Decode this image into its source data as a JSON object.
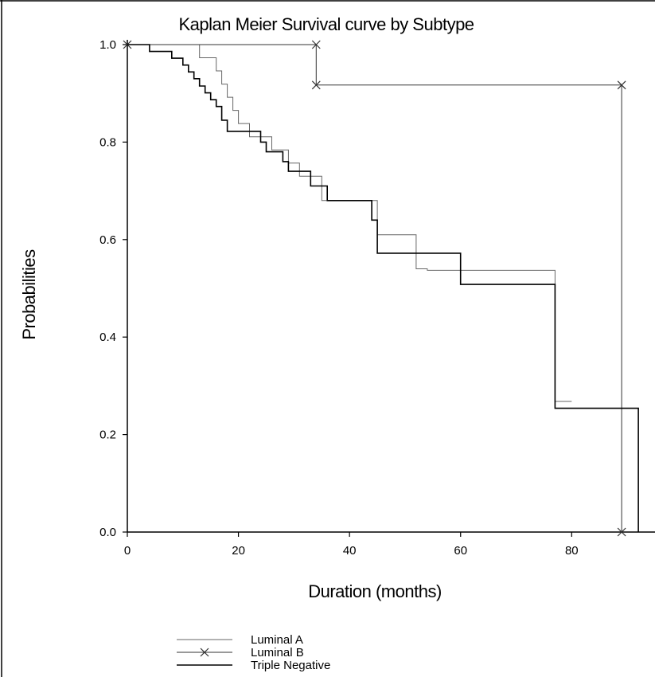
{
  "chart_data": {
    "type": "line",
    "step": true,
    "title": "Kaplan Meier Survival curve by Subtype",
    "xlabel": "Duration (months)",
    "ylabel": "Probabilities",
    "xlim": [
      0,
      95
    ],
    "ylim": [
      0,
      1.0
    ],
    "x_ticks": [
      0,
      20,
      40,
      60,
      80
    ],
    "x_tick_labels": [
      "0",
      "20",
      "40",
      "60",
      "80"
    ],
    "y_ticks": [
      0.0,
      0.2,
      0.4,
      0.6,
      0.8,
      1.0
    ],
    "y_tick_labels": [
      "0.0",
      "0.2",
      "0.4",
      "0.6",
      "0.8",
      "1.0"
    ],
    "grid": false,
    "legend_position": "bottom-left",
    "series": [
      {
        "name": "Luminal A",
        "marker": "none",
        "color": "#666666",
        "points": [
          [
            0,
            1.0
          ],
          [
            13,
            1.0
          ],
          [
            13,
            0.973
          ],
          [
            16,
            0.973
          ],
          [
            16,
            0.946
          ],
          [
            17,
            0.946
          ],
          [
            17,
            0.919
          ],
          [
            18,
            0.919
          ],
          [
            18,
            0.892
          ],
          [
            19,
            0.892
          ],
          [
            19,
            0.865
          ],
          [
            20,
            0.865
          ],
          [
            20,
            0.838
          ],
          [
            22,
            0.838
          ],
          [
            22,
            0.811
          ],
          [
            26,
            0.811
          ],
          [
            26,
            0.784
          ],
          [
            29,
            0.784
          ],
          [
            29,
            0.757
          ],
          [
            31,
            0.757
          ],
          [
            31,
            0.73
          ],
          [
            35,
            0.73
          ],
          [
            35,
            0.68
          ],
          [
            45,
            0.68
          ],
          [
            45,
            0.61
          ],
          [
            52,
            0.61
          ],
          [
            52,
            0.54
          ],
          [
            54,
            0.54
          ],
          [
            54,
            0.537
          ],
          [
            77,
            0.537
          ],
          [
            77,
            0.268
          ],
          [
            80,
            0.268
          ]
        ]
      },
      {
        "name": "Luminal B",
        "marker": "x",
        "color": "#333333",
        "points": [
          [
            0,
            1.0
          ],
          [
            34,
            1.0
          ],
          [
            34,
            0.917
          ],
          [
            89,
            0.917
          ],
          [
            89,
            0.0
          ]
        ]
      },
      {
        "name": "Triple Negative",
        "marker": "none",
        "color": "#000000",
        "points": [
          [
            0,
            1.0
          ],
          [
            4,
            1.0
          ],
          [
            4,
            0.986
          ],
          [
            8,
            0.986
          ],
          [
            8,
            0.972
          ],
          [
            10,
            0.972
          ],
          [
            10,
            0.958
          ],
          [
            11,
            0.958
          ],
          [
            11,
            0.944
          ],
          [
            12,
            0.944
          ],
          [
            12,
            0.93
          ],
          [
            13,
            0.93
          ],
          [
            13,
            0.915
          ],
          [
            14,
            0.915
          ],
          [
            14,
            0.901
          ],
          [
            15,
            0.901
          ],
          [
            15,
            0.887
          ],
          [
            16,
            0.887
          ],
          [
            16,
            0.873
          ],
          [
            17,
            0.873
          ],
          [
            17,
            0.845
          ],
          [
            18,
            0.845
          ],
          [
            18,
            0.822
          ],
          [
            24,
            0.822
          ],
          [
            24,
            0.8
          ],
          [
            25,
            0.8
          ],
          [
            25,
            0.78
          ],
          [
            28,
            0.78
          ],
          [
            28,
            0.76
          ],
          [
            29,
            0.76
          ],
          [
            29,
            0.74
          ],
          [
            33,
            0.74
          ],
          [
            33,
            0.71
          ],
          [
            36,
            0.71
          ],
          [
            36,
            0.68
          ],
          [
            44,
            0.68
          ],
          [
            44,
            0.64
          ],
          [
            45,
            0.64
          ],
          [
            45,
            0.572
          ],
          [
            60,
            0.572
          ],
          [
            60,
            0.508
          ],
          [
            77,
            0.508
          ],
          [
            77,
            0.254
          ],
          [
            92,
            0.254
          ],
          [
            92,
            0.0
          ]
        ]
      }
    ]
  }
}
